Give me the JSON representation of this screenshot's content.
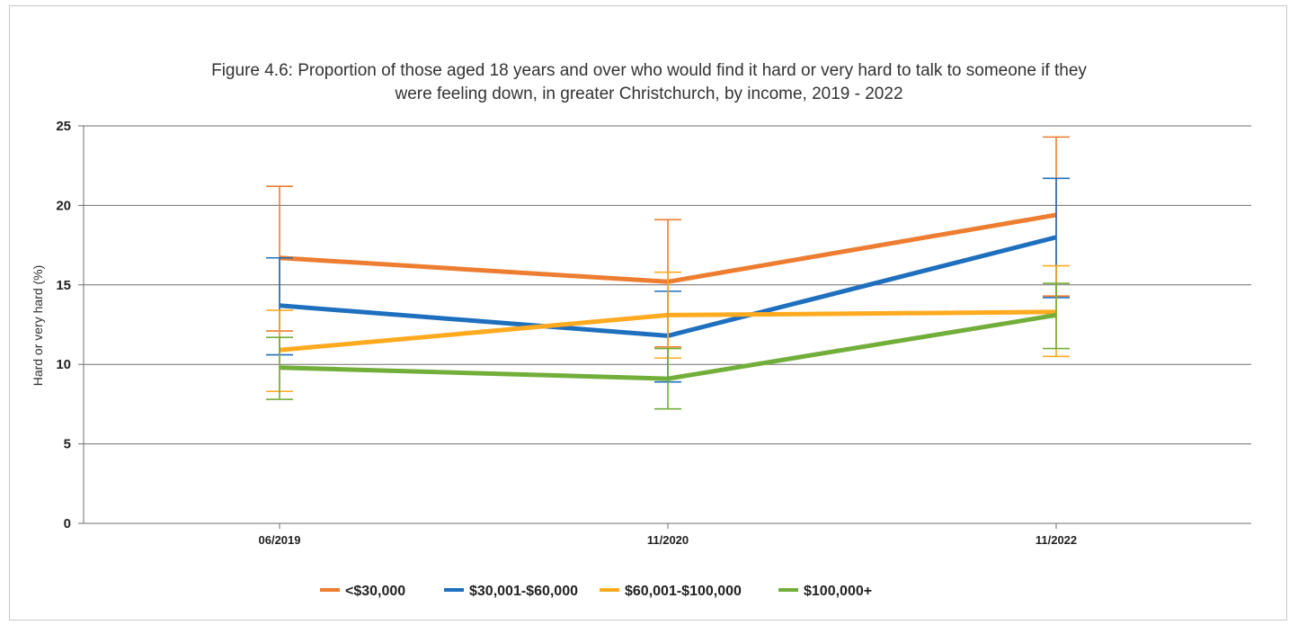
{
  "chart_data": {
    "type": "line",
    "title_lines": [
      "Figure 4.6: Proportion of those aged 18 years and over who would find it hard or very hard to talk to someone if they",
      "were feeling down, in greater Christchurch, by income, 2019 - 2022"
    ],
    "xlabel": "",
    "ylabel": "Hard or very hard (%)",
    "ylim": [
      0,
      25
    ],
    "yticks": [
      0,
      5,
      10,
      15,
      20,
      25
    ],
    "categories": [
      "06/2019",
      "11/2020",
      "11/2022"
    ],
    "grid": "horizontal",
    "legend_position": "bottom",
    "series": [
      {
        "name": "<$30,000",
        "color": "#ED7D31",
        "values": [
          16.7,
          15.2,
          19.4
        ],
        "error_low": [
          12.1,
          11.1,
          14.3
        ],
        "error_high": [
          21.2,
          19.1,
          24.3
        ]
      },
      {
        "name": "$30,001-$60,000",
        "color": "#1F6FBF",
        "values": [
          13.7,
          11.8,
          18.0
        ],
        "error_low": [
          10.6,
          8.9,
          14.2
        ],
        "error_high": [
          16.7,
          14.6,
          21.7
        ]
      },
      {
        "name": "$60,001-$100,000",
        "color": "#FFAA1F",
        "values": [
          10.9,
          13.1,
          13.3
        ],
        "error_low": [
          8.3,
          10.4,
          10.5
        ],
        "error_high": [
          13.4,
          15.8,
          16.2
        ]
      },
      {
        "name": "$100,000+",
        "color": "#72AE3A",
        "values": [
          9.8,
          9.1,
          13.1
        ],
        "error_low": [
          7.8,
          7.2,
          11.0
        ],
        "error_high": [
          11.7,
          11.0,
          15.1
        ]
      }
    ]
  }
}
